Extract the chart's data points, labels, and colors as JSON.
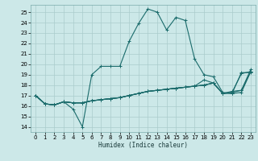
{
  "xlabel": "Humidex (Indice chaleur)",
  "bg_color": "#cce8e8",
  "grid_color": "#aacccc",
  "line_color": "#1a6b6b",
  "xlim": [
    -0.5,
    23.5
  ],
  "ylim": [
    13.5,
    25.7
  ],
  "xticks": [
    0,
    1,
    2,
    3,
    4,
    5,
    6,
    7,
    8,
    9,
    10,
    11,
    12,
    13,
    14,
    15,
    16,
    17,
    18,
    19,
    20,
    21,
    22,
    23
  ],
  "yticks": [
    14,
    15,
    16,
    17,
    18,
    19,
    20,
    21,
    22,
    23,
    24,
    25
  ],
  "lines": [
    [
      17.0,
      16.2,
      16.1,
      16.4,
      15.7,
      14.0,
      19.0,
      19.8,
      19.8,
      19.8,
      22.2,
      23.9,
      25.3,
      25.0,
      23.3,
      24.5,
      24.2,
      20.5,
      19.0,
      18.8,
      17.3,
      17.2,
      19.2,
      19.2
    ],
    [
      17.0,
      16.2,
      16.1,
      16.4,
      16.3,
      16.3,
      16.5,
      16.6,
      16.7,
      16.8,
      17.0,
      17.2,
      17.4,
      17.5,
      17.6,
      17.7,
      17.8,
      17.9,
      18.0,
      18.2,
      17.2,
      17.2,
      17.3,
      19.3
    ],
    [
      17.0,
      16.2,
      16.1,
      16.4,
      16.3,
      16.3,
      16.5,
      16.6,
      16.7,
      16.8,
      17.0,
      17.2,
      17.4,
      17.5,
      17.6,
      17.7,
      17.8,
      17.9,
      18.5,
      18.2,
      17.2,
      17.3,
      17.5,
      19.3
    ],
    [
      17.0,
      16.2,
      16.1,
      16.4,
      16.3,
      16.3,
      16.5,
      16.6,
      16.7,
      16.8,
      17.0,
      17.2,
      17.4,
      17.5,
      17.6,
      17.7,
      17.8,
      17.9,
      18.0,
      18.2,
      17.2,
      17.3,
      19.1,
      19.3
    ],
    [
      17.0,
      16.2,
      16.1,
      16.4,
      16.3,
      16.3,
      16.5,
      16.6,
      16.7,
      16.8,
      17.0,
      17.2,
      17.4,
      17.5,
      17.6,
      17.7,
      17.8,
      17.9,
      18.0,
      18.2,
      17.2,
      17.4,
      17.5,
      19.5
    ]
  ]
}
